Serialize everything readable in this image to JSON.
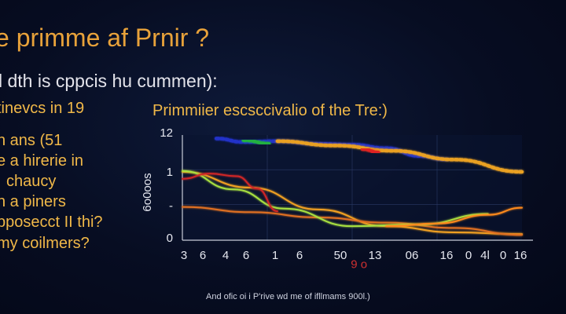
{
  "page": {
    "title": "e primme af Prnir ?",
    "subtitle": "l dth is cppcis hu cummen):",
    "left_lines": [
      "tinevcs in 19",
      "n ans  (51",
      "e a hirerie in",
      "chaucy",
      "h a piners",
      "pposecct II thi?",
      "my coilmers?"
    ],
    "footnote": "And ofic oi i P'rive wd me of ifllmams 900l.)"
  },
  "chart_data": {
    "type": "line",
    "title": "Primmiier escsccivalio of the Tre:)",
    "xlabel": "",
    "ylabel": "6o0oos",
    "y_ticks": [
      "12",
      "1",
      "-",
      "0"
    ],
    "x_ticks": [
      "3",
      "6",
      "4",
      "6",
      "1",
      "6",
      "50",
      "13",
      "06",
      "16",
      "0",
      "4l",
      "0",
      "16"
    ],
    "xlim": [
      0,
      100
    ],
    "ylim": [
      0,
      12
    ],
    "annotations": [
      {
        "text": "9 o",
        "color": "#d03030",
        "x": 52,
        "y": -3.2
      }
    ],
    "series": [
      {
        "color": "#2030c8",
        "x": [
          10,
          18,
          28,
          40,
          50,
          60,
          70,
          78
        ],
        "y": [
          11.6,
          11.2,
          11.3,
          11.0,
          10.9,
          10.5,
          9.6,
          9.2
        ]
      },
      {
        "color": "#f0a020",
        "x": [
          0,
          20,
          40,
          60,
          80,
          100
        ],
        "y": [
          7.8,
          6.0,
          3.5,
          1.6,
          0.9,
          0.7
        ]
      },
      {
        "color": "#e07020",
        "x": [
          0,
          20,
          40,
          60,
          80,
          100
        ],
        "y": [
          3.8,
          3.2,
          2.6,
          2.0,
          1.4,
          0.6
        ]
      },
      {
        "color": "#a8e040",
        "x": [
          0,
          15,
          30,
          50,
          70,
          90
        ],
        "y": [
          7.9,
          5.8,
          3.6,
          1.6,
          1.8,
          3.0
        ]
      },
      {
        "color": "#ff8a1a",
        "x": [
          60,
          75,
          90,
          100
        ],
        "y": [
          1.6,
          1.9,
          2.9,
          3.7
        ]
      },
      {
        "color": "#d02828",
        "x": [
          0,
          8,
          16,
          22,
          28
        ],
        "y": [
          7.0,
          7.6,
          7.3,
          5.9,
          3.3
        ]
      },
      {
        "color": "#e9a020",
        "x": [
          28,
          45,
          62,
          80,
          100
        ],
        "y": [
          11.3,
          10.8,
          10.2,
          9.2,
          7.8
        ]
      },
      {
        "color": "#20b040",
        "x": [
          18,
          26
        ],
        "y": [
          11.4,
          11.0
        ]
      },
      {
        "color": "#e02020",
        "x": [
          53,
          58
        ],
        "y": [
          10.4,
          10.0
        ]
      }
    ]
  }
}
